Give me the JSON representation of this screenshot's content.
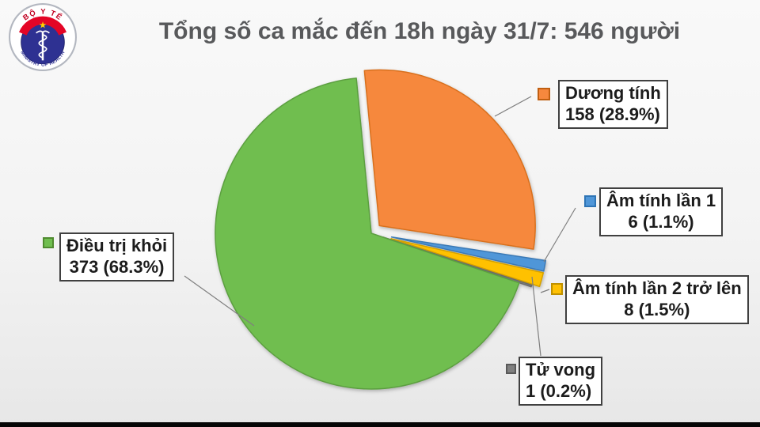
{
  "title": "Tổng số ca mắc đến 18h ngày 31/7: 546 người",
  "logo": {
    "top_text": "BỘ Y TẾ",
    "bottom_text": "MINISTRY OF HEALTH",
    "emblem": "rod-of-asclepius",
    "band_color": "#e40526",
    "disc_color": "#2e3192",
    "star_color": "#ffd400"
  },
  "chart_data": {
    "type": "pie",
    "title": "Tổng số ca mắc đến 18h ngày 31/7: 546 người",
    "total": 546,
    "total_unit": "người",
    "legend_position": "callouts",
    "start_angle_deg": -5.5,
    "slices": [
      {
        "key": "duong-tinh",
        "label": "Dương tính",
        "value": 158,
        "pct": 28.9,
        "display": "158 (28.9%)",
        "color": "#F6883E",
        "stroke": "#D8701F",
        "marker_border": "#C05F11",
        "explode": 14
      },
      {
        "key": "am-tinh-lan-1",
        "label": "Âm tính lần 1",
        "value": 6,
        "pct": 1.1,
        "display": "6 (1.1%)",
        "color": "#4F96D8",
        "stroke": "#3B79B5",
        "marker_border": "#2E74B5",
        "explode": 26
      },
      {
        "key": "am-tinh-lan-2",
        "label": "Âm tính lần 2 trở lên",
        "value": 8,
        "pct": 1.5,
        "display": "8 (1.5%)",
        "color": "#FFC103",
        "stroke": "#D3A000",
        "marker_border": "#BF9000",
        "explode": 26
      },
      {
        "key": "tu-vong",
        "label": "Tử vong",
        "value": 1,
        "pct": 0.2,
        "display": "1 (0.2%)",
        "color": "#808080",
        "stroke": "#6A6A6A",
        "marker_border": "#595959",
        "explode": 16
      },
      {
        "key": "dieu-tri-khoi",
        "label": "Điều trị khỏi",
        "value": 373,
        "pct": 68.3,
        "display": "373 (68.3%)",
        "color": "#70BE4F",
        "stroke": "#5C9F40",
        "marker_border": "#4F8A2F",
        "explode": 0
      }
    ]
  }
}
